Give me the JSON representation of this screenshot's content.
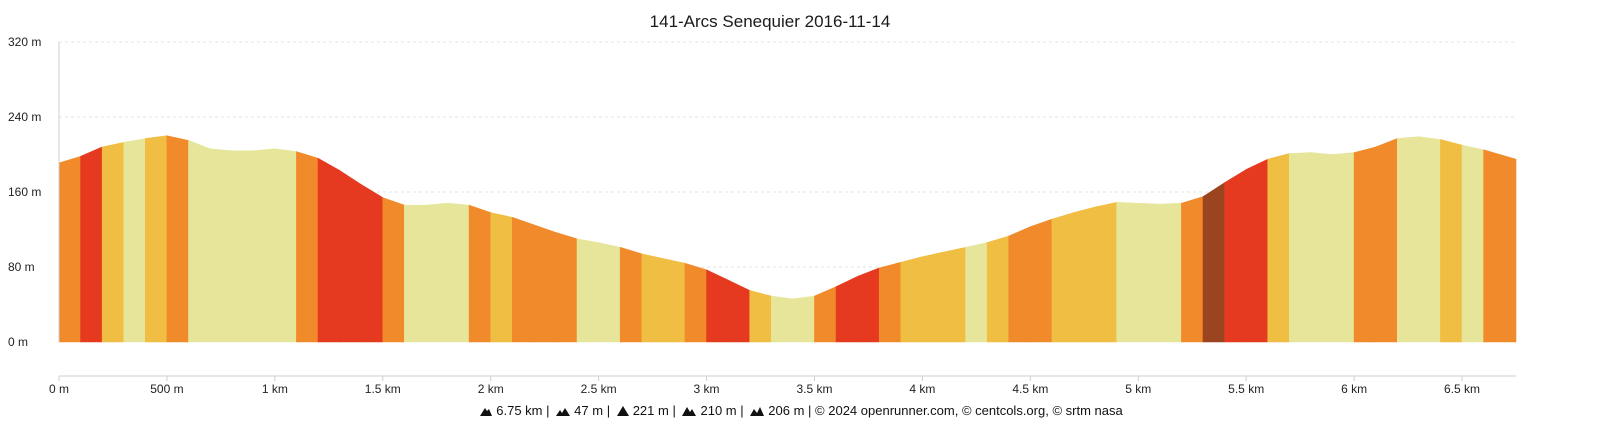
{
  "chart_data": {
    "type": "area",
    "title": "141-Arcs Senequier 2016-11-14",
    "xlabel": "",
    "ylabel": "",
    "xlim": [
      0,
      6.75
    ],
    "ylim": [
      0,
      320
    ],
    "y_ticks": [
      {
        "value": 0,
        "label": "0 m"
      },
      {
        "value": 80,
        "label": "80 m"
      },
      {
        "value": 160,
        "label": "160 m"
      },
      {
        "value": 240,
        "label": "240 m"
      },
      {
        "value": 320,
        "label": "320 m"
      }
    ],
    "x_ticks": [
      {
        "value": 0,
        "label": "0 m"
      },
      {
        "value": 0.5,
        "label": "500 m"
      },
      {
        "value": 1,
        "label": "1 km"
      },
      {
        "value": 1.5,
        "label": "1.5 km"
      },
      {
        "value": 2,
        "label": "2 km"
      },
      {
        "value": 2.5,
        "label": "2.5 km"
      },
      {
        "value": 3,
        "label": "3 km"
      },
      {
        "value": 3.5,
        "label": "3.5 km"
      },
      {
        "value": 4,
        "label": "4 km"
      },
      {
        "value": 4.5,
        "label": "4.5 km"
      },
      {
        "value": 5,
        "label": "5 km"
      },
      {
        "value": 5.5,
        "label": "5.5 km"
      },
      {
        "value": 6,
        "label": "6 km"
      },
      {
        "value": 6.5,
        "label": "6.5 km"
      }
    ],
    "grid": true,
    "x": [
      0,
      0.1,
      0.2,
      0.3,
      0.4,
      0.5,
      0.6,
      0.7,
      0.8,
      0.9,
      1.0,
      1.1,
      1.2,
      1.3,
      1.4,
      1.5,
      1.6,
      1.7,
      1.8,
      1.9,
      2.0,
      2.1,
      2.2,
      2.3,
      2.4,
      2.5,
      2.6,
      2.7,
      2.8,
      2.9,
      3.0,
      3.1,
      3.2,
      3.3,
      3.4,
      3.5,
      3.6,
      3.7,
      3.8,
      3.9,
      4.0,
      4.1,
      4.2,
      4.3,
      4.4,
      4.5,
      4.6,
      4.7,
      4.8,
      4.9,
      5.0,
      5.1,
      5.2,
      5.3,
      5.4,
      5.5,
      5.6,
      5.7,
      5.8,
      5.9,
      6.0,
      6.1,
      6.2,
      6.3,
      6.4,
      6.5,
      6.6,
      6.75
    ],
    "y": [
      191,
      198,
      208,
      213,
      217,
      220,
      215,
      206,
      204,
      204,
      206,
      203,
      196,
      183,
      168,
      154,
      146,
      146,
      148,
      146,
      138,
      133,
      125,
      117,
      110,
      106,
      101,
      94,
      89,
      84,
      77,
      66,
      55,
      49,
      46,
      49,
      59,
      70,
      79,
      85,
      91,
      96,
      101,
      106,
      113,
      123,
      131,
      138,
      144,
      149,
      148,
      147,
      148,
      155,
      170,
      184,
      195,
      201,
      202,
      200,
      202,
      208,
      217,
      219,
      216,
      210,
      205,
      195
    ],
    "segment_colors": [
      "#f08a2a",
      "#e53a20",
      "#f0be42",
      "#e6e59a",
      "#f0be42",
      "#f08a2a",
      "#e6e59a",
      "#e6e59a",
      "#e6e59a",
      "#e6e59a",
      "#e6e59a",
      "#f08a2a",
      "#e53a20",
      "#e53a20",
      "#e53a20",
      "#f08a2a",
      "#e6e59a",
      "#e6e59a",
      "#e6e59a",
      "#f08a2a",
      "#f0be42",
      "#f08a2a",
      "#f08a2a",
      "#f08a2a",
      "#e6e59a",
      "#e6e59a",
      "#f08a2a",
      "#f0be42",
      "#f0be42",
      "#f08a2a",
      "#e53a20",
      "#e53a20",
      "#f0be42",
      "#e6e59a",
      "#e6e59a",
      "#f08a2a",
      "#e53a20",
      "#e53a20",
      "#f08a2a",
      "#f0be42",
      "#f0be42",
      "#f0be42",
      "#e6e59a",
      "#f0be42",
      "#f08a2a",
      "#f08a2a",
      "#f0be42",
      "#f0be42",
      "#f0be42",
      "#e6e59a",
      "#e6e59a",
      "#e6e59a",
      "#f08a2a",
      "#9b4520",
      "#e53a20",
      "#e53a20",
      "#f0be42",
      "#e6e59a",
      "#e6e59a",
      "#e6e59a",
      "#f08a2a",
      "#f08a2a",
      "#e6e59a",
      "#e6e59a",
      "#f0be42",
      "#e6e59a",
      "#f08a2a"
    ]
  },
  "footer": {
    "distance": "6.75 km",
    "descent_min": "47 m",
    "ascent_max": "221 m",
    "elevation_gain": "210 m",
    "elevation_loss": "206 m",
    "credits": "© 2024 openrunner.com, © centcols.org, © srtm nasa",
    "separator": "|"
  }
}
